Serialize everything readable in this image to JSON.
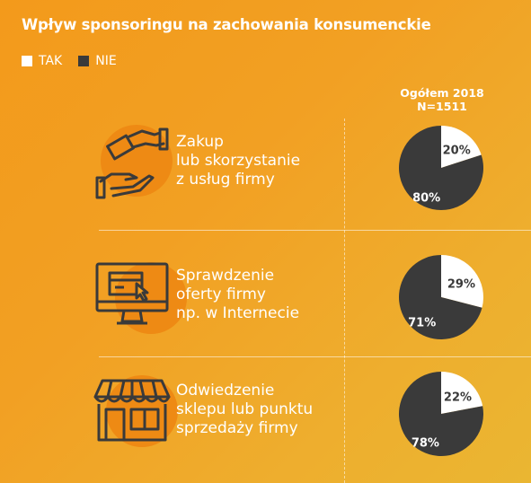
{
  "title": "Wpływ sponsoringu na zachowania konsumenckie",
  "legend": [
    {
      "label": "TAK",
      "color": "#FFFFFF"
    },
    {
      "label": "NIE",
      "color": "#3A3A3A"
    }
  ],
  "column_header": {
    "line1": "Ogółem 2018",
    "line2": "N=1511"
  },
  "rows": [
    {
      "label_lines": [
        "Zakup",
        "lub skorzystanie",
        "z usług firmy"
      ],
      "icon": "hand-money-icon"
    },
    {
      "label_lines": [
        "Sprawdzenie",
        "oferty firmy",
        "np. w Internecie"
      ],
      "icon": "computer-monitor-icon"
    },
    {
      "label_lines": [
        "Odwiedzenie",
        "sklepu lub punktu",
        "sprzedaży firmy"
      ],
      "icon": "shop-storefront-icon"
    }
  ],
  "chart_data": [
    {
      "type": "pie",
      "title": "Zakup lub skorzystanie z usług firmy",
      "categories": [
        "TAK",
        "NIE"
      ],
      "values": [
        20,
        80
      ],
      "labels": [
        "20%",
        "80%"
      ]
    },
    {
      "type": "pie",
      "title": "Sprawdzenie oferty firmy np. w Internecie",
      "categories": [
        "TAK",
        "NIE"
      ],
      "values": [
        29,
        71
      ],
      "labels": [
        "29%",
        "71%"
      ]
    },
    {
      "type": "pie",
      "title": "Odwiedzenie sklepu lub punktu sprzedaży firmy",
      "categories": [
        "TAK",
        "NIE"
      ],
      "values": [
        22,
        78
      ],
      "labels": [
        "22%",
        "78%"
      ]
    }
  ]
}
